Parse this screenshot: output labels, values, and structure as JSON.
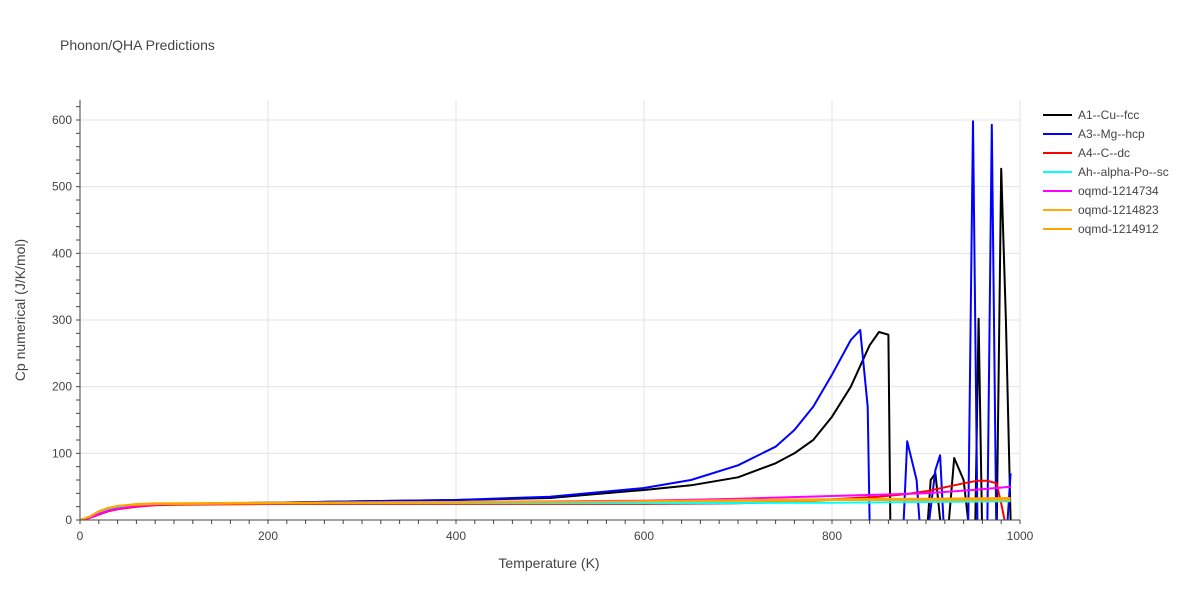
{
  "chart_data": {
    "type": "line",
    "title": "Phonon/QHA Predictions",
    "xlabel": "Temperature (K)",
    "ylabel": "Cp numerical (J/K/mol)",
    "xlim": [
      0,
      1000
    ],
    "ylim": [
      0,
      630
    ],
    "x_ticks": [
      0,
      200,
      400,
      600,
      800,
      1000
    ],
    "y_ticks": [
      0,
      100,
      200,
      300,
      400,
      500,
      600
    ],
    "grid": true,
    "legend_position": "right",
    "series": [
      {
        "name": "A1--Cu--fcc",
        "color": "#000000",
        "x": [
          0,
          10,
          20,
          30,
          40,
          60,
          80,
          100,
          150,
          200,
          300,
          400,
          500,
          600,
          650,
          700,
          740,
          760,
          780,
          800,
          820,
          840,
          850,
          860,
          862,
          870,
          880,
          890,
          900,
          905,
          910,
          918,
          922,
          930,
          940,
          948,
          952,
          956,
          960,
          965,
          970,
          975,
          980,
          985,
          990
        ],
        "y": [
          0,
          4,
          10,
          15,
          18,
          22,
          23,
          24,
          25,
          26,
          28,
          30,
          33,
          45,
          52,
          64,
          85,
          100,
          120,
          155,
          200,
          262,
          282,
          278,
          0,
          -40,
          -40,
          -40,
          -40,
          60,
          70,
          -40,
          -40,
          93,
          60,
          -40,
          -40,
          302,
          -40,
          -40,
          -40,
          -40,
          527,
          300,
          0
        ]
      },
      {
        "name": "A3--Mg--hcp",
        "color": "#0000ff",
        "x": [
          0,
          10,
          20,
          30,
          40,
          60,
          80,
          100,
          150,
          200,
          300,
          400,
          500,
          600,
          650,
          700,
          740,
          760,
          780,
          800,
          820,
          830,
          838,
          840,
          842,
          850,
          870,
          875,
          880,
          890,
          895,
          900,
          910,
          915,
          920,
          930,
          940,
          945,
          950,
          955,
          960,
          965,
          970,
          975,
          980,
          985,
          990
        ],
        "y": [
          0,
          4,
          10,
          15,
          18,
          22,
          23,
          24,
          25,
          26,
          28,
          30,
          35,
          48,
          60,
          82,
          110,
          135,
          170,
          218,
          270,
          285,
          170,
          0,
          -40,
          -40,
          -40,
          -40,
          118,
          60,
          -40,
          -40,
          75,
          97,
          -40,
          -40,
          -40,
          0,
          598,
          -40,
          -40,
          -40,
          593,
          -40,
          -40,
          -40,
          70
        ]
      },
      {
        "name": "A4--C--dc",
        "color": "#ff0000",
        "x": [
          0,
          10,
          20,
          30,
          40,
          60,
          80,
          100,
          200,
          400,
          600,
          700,
          780,
          800,
          850,
          880,
          900,
          920,
          940,
          955,
          965,
          975,
          980,
          985
        ],
        "y": [
          0,
          3,
          8,
          13,
          16,
          20,
          22,
          23,
          24,
          24,
          24,
          25,
          28,
          31,
          35,
          39,
          43,
          49,
          55,
          59,
          59,
          55,
          25,
          -10
        ]
      },
      {
        "name": "Ah--alpha-Po--sc",
        "color": "#00ffff",
        "x": [
          0,
          10,
          20,
          30,
          40,
          60,
          80,
          100,
          200,
          400,
          600,
          800,
          900,
          990
        ],
        "y": [
          0,
          5,
          12,
          17,
          20,
          23,
          24,
          24,
          25,
          25,
          25,
          26,
          27,
          28
        ]
      },
      {
        "name": "oqmd-1214734",
        "color": "#ff00ff",
        "x": [
          0,
          10,
          20,
          30,
          40,
          60,
          80,
          100,
          200,
          400,
          600,
          700,
          800,
          900,
          950,
          990
        ],
        "y": [
          0,
          3,
          9,
          14,
          17,
          21,
          23,
          24,
          25,
          27,
          29,
          32,
          36,
          40,
          45,
          50
        ]
      },
      {
        "name": "oqmd-1214823",
        "color": "#ffaa00",
        "x": [
          0,
          10,
          20,
          30,
          40,
          60,
          80,
          100,
          200,
          400,
          600,
          780,
          800,
          900,
          990
        ],
        "y": [
          0,
          5,
          13,
          18,
          21,
          24,
          25,
          25,
          26,
          27,
          28,
          29,
          30,
          30,
          30
        ]
      },
      {
        "name": "oqmd-1214912",
        "color": "#ffa500",
        "x": [
          0,
          10,
          20,
          30,
          40,
          60,
          80,
          100,
          200,
          400,
          600,
          700,
          800,
          900,
          990
        ],
        "y": [
          0,
          5,
          13,
          18,
          21,
          23,
          24,
          24,
          25,
          26,
          28,
          30,
          31,
          32,
          33
        ]
      }
    ]
  }
}
